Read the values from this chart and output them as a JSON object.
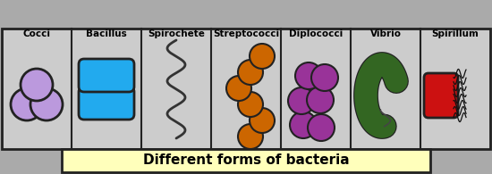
{
  "title": "Different forms of bacteria",
  "title_bg": "#ffffbb",
  "title_fontsize": 11,
  "cell_bg": "#cccccc",
  "border_color": "#222222",
  "labels": [
    "Cocci",
    "Bacillus",
    "Spirochete",
    "Streptococci",
    "Diplococci",
    "Vibrio",
    "Spirillum"
  ],
  "label_fontsize": 7.5,
  "cocci_color": "#bb99dd",
  "cocci_edge": "#222222",
  "bacillus_color": "#22aaee",
  "bacillus_edge": "#222222",
  "spirochete_color": "#333333",
  "streptococci_color": "#cc6600",
  "streptococci_edge": "#222222",
  "diplococci_color": "#993399",
  "diplococci_edge": "#222222",
  "vibrio_color": "#336622",
  "vibrio_edge": "#222222",
  "spirillum_body_color": "#cc1111",
  "spirillum_body_edge": "#222222",
  "spirillum_flagella_color": "#111111",
  "fig_bg": "#aaaaaa"
}
